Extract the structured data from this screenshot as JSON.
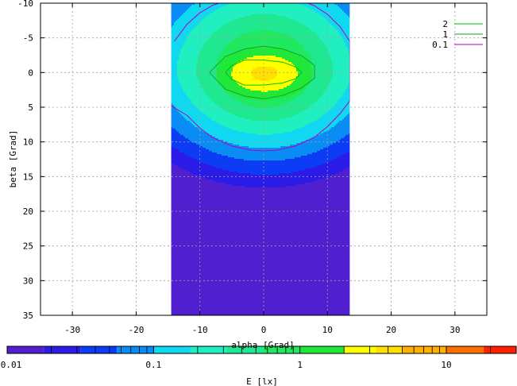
{
  "chart_data": {
    "type": "heatmap",
    "xlabel": "alpha [Grad]",
    "ylabel": "beta [Grad]",
    "xlim": [
      -35,
      35
    ],
    "ylim": [
      35,
      -10
    ],
    "x_ticks": [
      -30,
      -20,
      -10,
      0,
      10,
      20,
      30
    ],
    "y_ticks": [
      -10,
      -5,
      0,
      5,
      10,
      15,
      20,
      25,
      30,
      35
    ],
    "grid": true,
    "data_extent": {
      "alpha": [
        -14.5,
        13.5
      ],
      "beta": [
        -10,
        35
      ]
    },
    "contours": [
      {
        "name": "2",
        "level": 2,
        "color": "#00c000",
        "points": [
          [
            -6,
            0
          ],
          [
            -5,
            -1
          ],
          [
            -3,
            -1.8
          ],
          [
            0,
            -1.8
          ],
          [
            3,
            -1.5
          ],
          [
            5,
            -0.8
          ],
          [
            6,
            0
          ],
          [
            5,
            0.9
          ],
          [
            3,
            1.5
          ],
          [
            0,
            1.8
          ],
          [
            -3,
            1.8
          ],
          [
            -5,
            1
          ],
          [
            -6,
            0
          ]
        ]
      },
      {
        "name": "1",
        "level": 1,
        "color": "#1a9e2e",
        "points": [
          [
            -8.5,
            0
          ],
          [
            -6,
            -2.3
          ],
          [
            -3,
            -3.4
          ],
          [
            0,
            -3.8
          ],
          [
            3,
            -3.4
          ],
          [
            6,
            -2.4
          ],
          [
            8,
            -1
          ],
          [
            8,
            0.8
          ],
          [
            6,
            2.2
          ],
          [
            3,
            3.3
          ],
          [
            0,
            3.8
          ],
          [
            -3,
            3.4
          ],
          [
            -6,
            2.4
          ],
          [
            -8.5,
            0
          ]
        ]
      },
      {
        "name": "0.1",
        "level": 0.1,
        "color": "#b000c0",
        "points": [
          [
            -14,
            -4.5
          ],
          [
            -12,
            -7
          ],
          [
            -10,
            -8.6
          ],
          [
            -8,
            -9.7
          ],
          [
            -7,
            -10
          ],
          [
            7,
            -10
          ],
          [
            8,
            -9.6
          ],
          [
            10,
            -8.4
          ],
          [
            12,
            -6.6
          ],
          [
            13.5,
            -4.5
          ],
          [
            13.5,
            4.1
          ],
          [
            12,
            5.9
          ],
          [
            10,
            7.8
          ],
          [
            8,
            9.3
          ],
          [
            5,
            10.6
          ],
          [
            2,
            11.2
          ],
          [
            0,
            11.3
          ],
          [
            -2,
            11.2
          ],
          [
            -5,
            10.6
          ],
          [
            -8,
            9.4
          ],
          [
            -10,
            8
          ],
          [
            -12,
            6.2
          ],
          [
            -14.5,
            4.8
          ]
        ]
      }
    ],
    "legend": {
      "position": "top-right",
      "entries": [
        "2",
        "1",
        "0.1"
      ]
    },
    "colorbar": {
      "label": "E [lx]",
      "scale": "log",
      "range": [
        0.01,
        30
      ],
      "tick_labels": [
        "0.01",
        "0.1",
        "1",
        "10"
      ],
      "ticks": [
        0.01,
        0.1,
        1,
        10
      ],
      "bands": [
        {
          "from": 0.01,
          "to": 0.0178,
          "color": "#5020d0"
        },
        {
          "from": 0.0178,
          "to": 0.0316,
          "color": "#2a1be6"
        },
        {
          "from": 0.0316,
          "to": 0.0562,
          "color": "#0c3df5"
        },
        {
          "from": 0.0562,
          "to": 0.1,
          "color": "#0a8cf5"
        },
        {
          "from": 0.1,
          "to": 0.178,
          "color": "#10d8f0"
        },
        {
          "from": 0.178,
          "to": 0.316,
          "color": "#20f0c0"
        },
        {
          "from": 0.316,
          "to": 0.562,
          "color": "#20e890"
        },
        {
          "from": 0.562,
          "to": 1,
          "color": "#20e860"
        },
        {
          "from": 1,
          "to": 2,
          "color": "#20e838"
        },
        {
          "from": 2,
          "to": 3.3,
          "color": "#ffff00"
        },
        {
          "from": 3.3,
          "to": 5,
          "color": "#ffe000"
        },
        {
          "from": 5,
          "to": 10,
          "color": "#ffb000"
        },
        {
          "from": 10,
          "to": 18,
          "color": "#ff7000"
        },
        {
          "from": 18,
          "to": 30,
          "color": "#ff2000"
        }
      ]
    }
  }
}
